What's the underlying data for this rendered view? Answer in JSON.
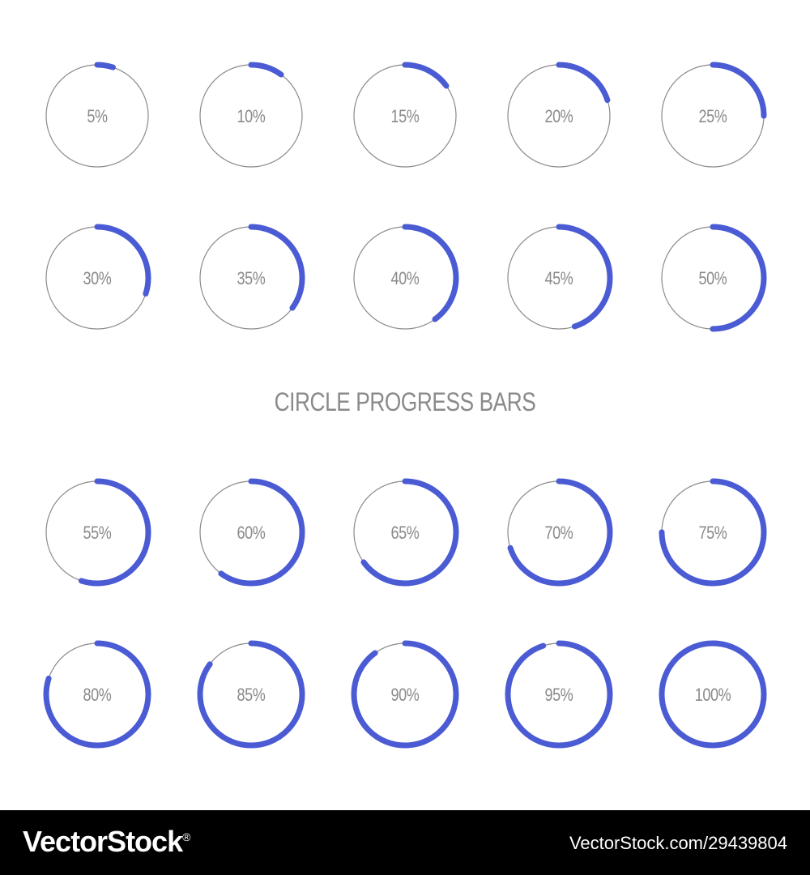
{
  "title": "CIRCLE PROGRESS BARS",
  "colors": {
    "background": "#ffffff",
    "track": "#8a8a8a",
    "progress": "#4a5bd4",
    "label": "#8a8a8a",
    "title": "#8a8a8a"
  },
  "progress_bars": [
    {
      "label": "5%",
      "value": 0.05
    },
    {
      "label": "10%",
      "value": 0.1
    },
    {
      "label": "15%",
      "value": 0.15
    },
    {
      "label": "20%",
      "value": 0.2
    },
    {
      "label": "25%",
      "value": 0.25
    },
    {
      "label": "30%",
      "value": 0.3
    },
    {
      "label": "35%",
      "value": 0.35
    },
    {
      "label": "40%",
      "value": 0.4
    },
    {
      "label": "45%",
      "value": 0.45
    },
    {
      "label": "50%",
      "value": 0.5
    },
    {
      "label": "55%",
      "value": 0.55
    },
    {
      "label": "60%",
      "value": 0.6
    },
    {
      "label": "65%",
      "value": 0.65
    },
    {
      "label": "70%",
      "value": 0.7
    },
    {
      "label": "75%",
      "value": 0.75
    },
    {
      "label": "80%",
      "value": 0.8
    },
    {
      "label": "85%",
      "value": 0.85
    },
    {
      "label": "90%",
      "value": 0.9
    },
    {
      "label": "95%",
      "value": 0.95
    },
    {
      "label": "100%",
      "value": 1.0
    }
  ],
  "watermark": {
    "logo": "VectorStock",
    "registered_mark": "®",
    "url": "VectorStock.com/29439804"
  }
}
